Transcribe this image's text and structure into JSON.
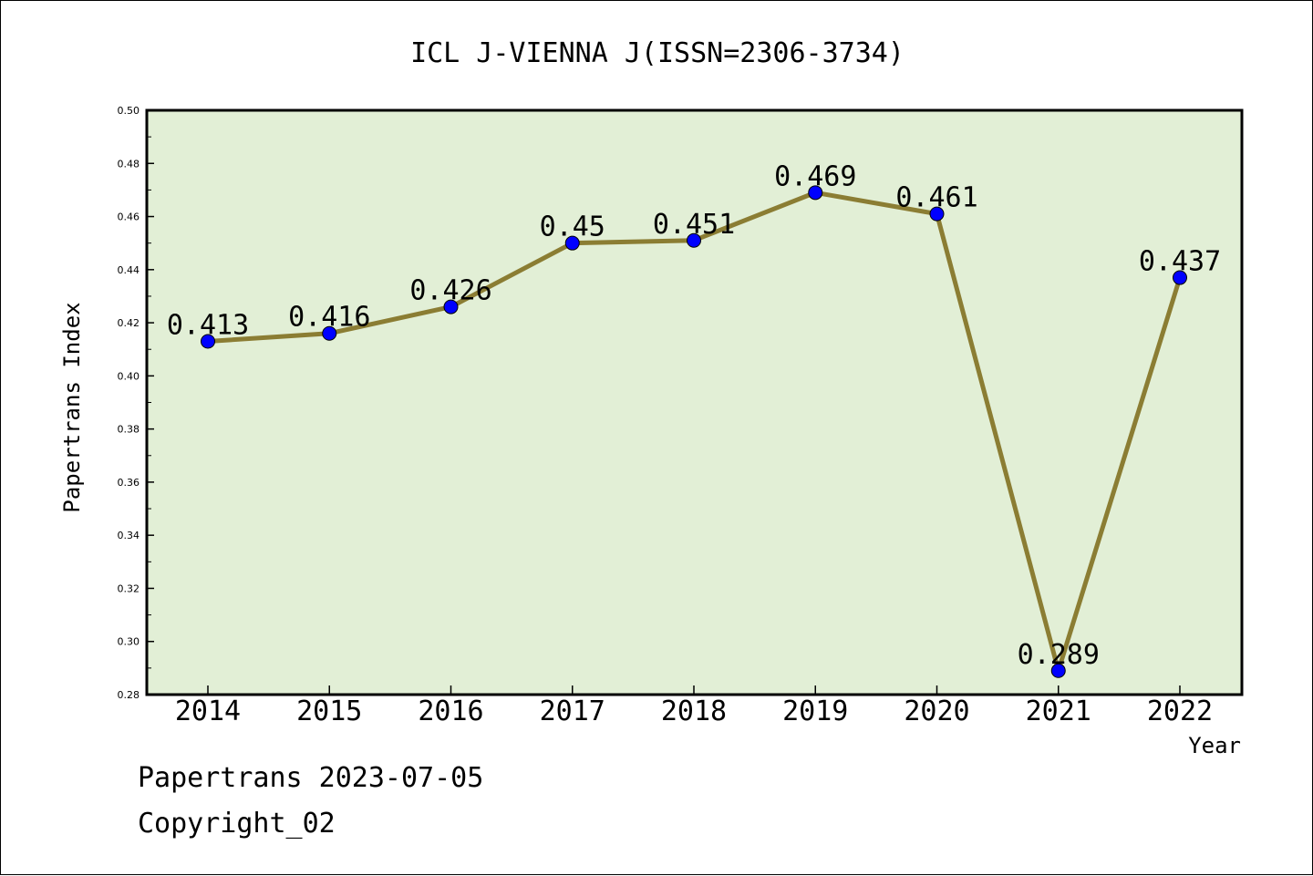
{
  "chart_data": {
    "type": "line",
    "title": "ICL J-VIENNA J(ISSN=2306-3734)",
    "xlabel": "Year",
    "ylabel": "Papertrans Index",
    "categories": [
      "2014",
      "2015",
      "2016",
      "2017",
      "2018",
      "2019",
      "2020",
      "2021",
      "2022"
    ],
    "series": [
      {
        "values": [
          0.413,
          0.416,
          0.426,
          0.45,
          0.451,
          0.469,
          0.461,
          0.289,
          0.437
        ]
      }
    ],
    "data_labels": [
      "0.413",
      "0.416",
      "0.426",
      "0.45",
      "0.451",
      "0.469",
      "0.461",
      "0.289",
      "0.437"
    ],
    "ylim": [
      0.28,
      0.5
    ],
    "yticks": [
      "0.28",
      "0.30",
      "0.32",
      "0.34",
      "0.36",
      "0.38",
      "0.40",
      "0.42",
      "0.44",
      "0.46",
      "0.48",
      "0.50"
    ],
    "grid": false,
    "legend": "none",
    "colors": {
      "plot_background": "#e2efd6",
      "line": "#8b7d33",
      "marker": "#0000ff"
    }
  },
  "footer": {
    "source": "Papertrans 2023-07-05",
    "copyright": "Copyright_02"
  }
}
